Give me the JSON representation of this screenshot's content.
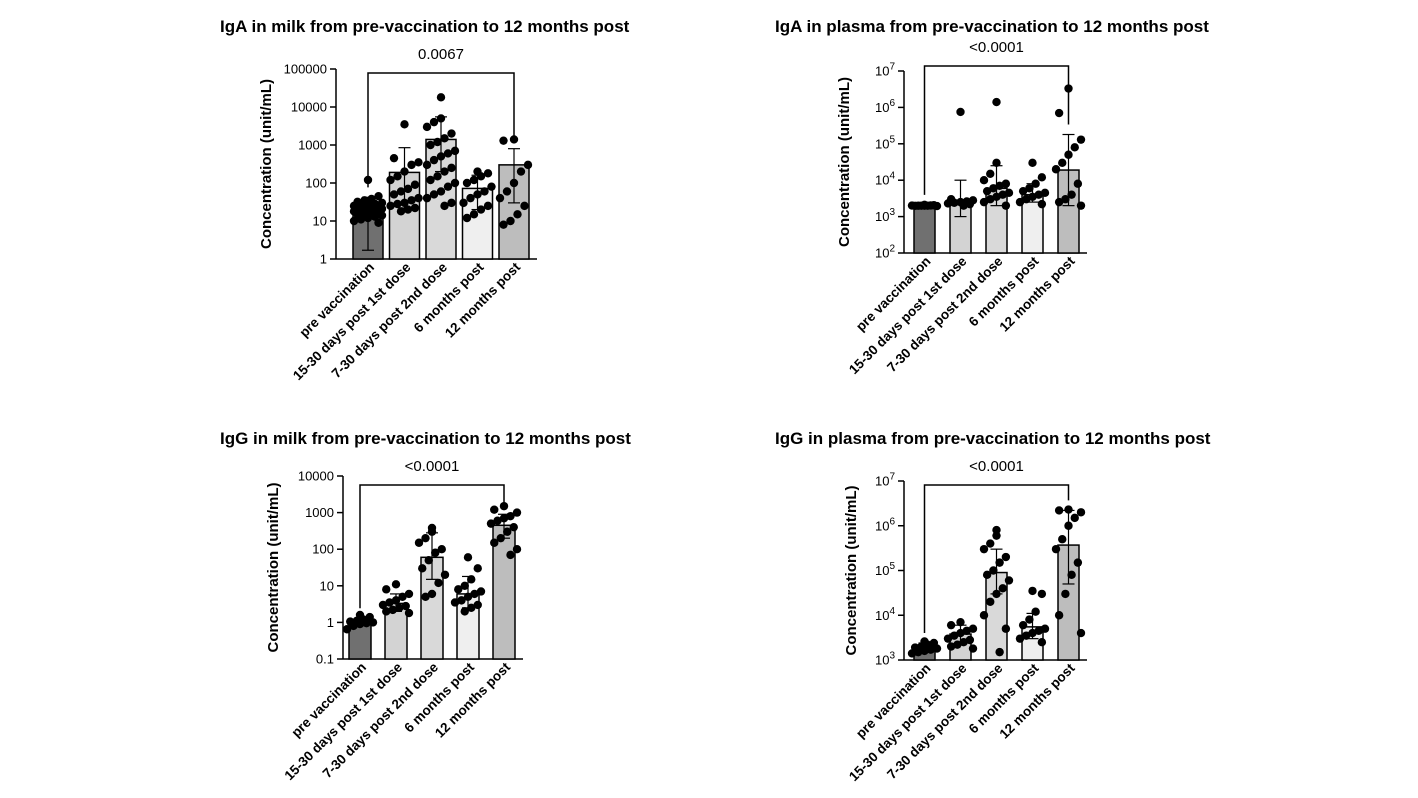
{
  "chart_data": [
    {
      "type": "bar",
      "title": "IgA in milk from pre-vaccination to 12 months post",
      "ylabel": "Concentration (unit/mL)",
      "yscale": "log",
      "ylim": [
        1,
        100000
      ],
      "yticks": [
        1,
        10,
        100,
        1000,
        10000,
        100000
      ],
      "ytick_labels": [
        "1",
        "10",
        "100",
        "1000",
        "10000",
        "100000"
      ],
      "categories": [
        "pre vaccination",
        "15-30 days post 1st dose",
        "7-30 days post 2nd dose",
        "6 months post",
        "12 months post"
      ],
      "bar_colors": [
        "#707070",
        "#d3d3d3",
        "#d9d9d9",
        "#efefef",
        "#bdbdbd"
      ],
      "values": [
        21,
        190,
        1400,
        72,
        300
      ],
      "err_low": [
        1.7,
        22,
        200,
        20,
        30
      ],
      "err_high": [
        42,
        850,
        5500,
        160,
        800
      ],
      "points": [
        [
          120,
          45,
          38,
          35,
          32,
          30,
          28,
          27,
          26,
          25,
          24,
          23,
          22,
          22,
          21,
          21,
          20,
          19,
          18,
          18,
          17,
          16,
          15,
          14,
          13,
          12,
          11,
          10,
          9
        ],
        [
          3500,
          450,
          350,
          300,
          200,
          150,
          120,
          90,
          70,
          60,
          50,
          40,
          35,
          30,
          28,
          25,
          22,
          20,
          18
        ],
        [
          18000,
          5000,
          4000,
          3000,
          2000,
          1500,
          1200,
          1000,
          700,
          600,
          500,
          400,
          300,
          250,
          200,
          150,
          120,
          100,
          80,
          60,
          50,
          40,
          30,
          25
        ],
        [
          200,
          180,
          150,
          120,
          100,
          80,
          60,
          50,
          40,
          30,
          25,
          20,
          15,
          12
        ],
        [
          1400,
          1300,
          300,
          200,
          100,
          60,
          40,
          25,
          15,
          10,
          8
        ]
      ],
      "comparison": {
        "from": 0,
        "to": 4,
        "label": "0.0067"
      }
    },
    {
      "type": "bar",
      "title": "IgA in plasma from pre-vaccination to 12 months post",
      "ylabel": "Concentration (unit/mL)",
      "yscale": "log",
      "ylim": [
        100,
        10000000
      ],
      "yticks": [
        100,
        1000,
        10000,
        100000,
        1000000,
        10000000
      ],
      "ytick_labels": [
        "10^2",
        "10^3",
        "10^4",
        "10^5",
        "10^6",
        "10^7"
      ],
      "categories": [
        "pre vaccination",
        "15-30 days post 1st dose",
        "7-30 days post 2nd dose",
        "6 months post",
        "12 months post"
      ],
      "bar_colors": [
        "#707070",
        "#d3d3d3",
        "#d9d9d9",
        "#efefef",
        "#bdbdbd"
      ],
      "values": [
        2000,
        2500,
        6000,
        4000,
        19000
      ],
      "err_low": [
        1900,
        1000,
        2000,
        2500,
        2000
      ],
      "err_high": [
        2100,
        10000,
        25000,
        8000,
        180000
      ],
      "points": [
        [
          2100,
          2050,
          2000,
          2000,
          1980,
          1950,
          2020,
          2000,
          1990,
          2010
        ],
        [
          750000,
          3000,
          2800,
          2600,
          2500,
          2400,
          2300,
          2200,
          2000
        ],
        [
          1400000,
          30000,
          15000,
          10000,
          8000,
          7000,
          6000,
          5000,
          4500,
          4000,
          3500,
          3000,
          2500,
          2000
        ],
        [
          30000,
          12000,
          8000,
          6000,
          5000,
          4500,
          4000,
          3500,
          3000,
          2500,
          2200
        ],
        [
          3300000,
          700000,
          130000,
          80000,
          50000,
          30000,
          20000,
          8000,
          4000,
          3000,
          2500,
          2000
        ]
      ],
      "comparison": {
        "from": 0,
        "to": 4,
        "label": "<0.0001"
      }
    },
    {
      "type": "bar",
      "title": "IgG in milk from pre-vaccination to 12 months post",
      "ylabel": "Concentration (unit/mL)",
      "yscale": "log",
      "ylim": [
        0.1,
        10000
      ],
      "yticks": [
        0.1,
        1,
        10,
        100,
        1000,
        10000
      ],
      "ytick_labels": [
        "0.1",
        "1",
        "10",
        "100",
        "1000",
        "10000"
      ],
      "categories": [
        "pre vaccination",
        "15-30 days post 1st dose",
        "7-30 days post 2nd dose",
        "6 months post",
        "12 months post"
      ],
      "bar_colors": [
        "#707070",
        "#d3d3d3",
        "#d9d9d9",
        "#efefef",
        "#bdbdbd"
      ],
      "values": [
        1.1,
        3.3,
        60,
        6,
        450
      ],
      "err_low": [
        0.9,
        2,
        15,
        2.5,
        200
      ],
      "err_high": [
        1.3,
        6,
        280,
        18,
        900
      ],
      "points": [
        [
          1.6,
          1.4,
          1.2,
          1.1,
          1.05,
          1.0,
          0.95,
          0.9,
          0.8,
          0.65
        ],
        [
          11,
          8,
          6,
          5,
          4,
          3.5,
          3,
          2.8,
          2.5,
          2.2,
          2,
          1.8
        ],
        [
          380,
          300,
          200,
          150,
          100,
          80,
          50,
          30,
          20,
          12,
          6,
          5
        ],
        [
          60,
          30,
          15,
          10,
          8,
          7,
          6,
          5,
          4,
          3.5,
          3,
          2.5,
          2
        ],
        [
          1500,
          1200,
          1000,
          800,
          700,
          600,
          500,
          400,
          300,
          200,
          150,
          100,
          70
        ]
      ],
      "comparison": {
        "from": 0,
        "to": 4,
        "label": "<0.0001"
      }
    },
    {
      "type": "bar",
      "title": "IgG in plasma from pre-vaccination to 12 months post",
      "ylabel": "Concentration (unit/mL)",
      "yscale": "log",
      "ylim": [
        1000,
        10000000
      ],
      "yticks": [
        1000,
        10000,
        100000,
        1000000,
        10000000
      ],
      "ytick_labels": [
        "10^3",
        "10^4",
        "10^5",
        "10^6",
        "10^7"
      ],
      "categories": [
        "pre vaccination",
        "15-30 days post 1st dose",
        "7-30 days post 2nd dose",
        "6 months post",
        "12 months post"
      ],
      "bar_colors": [
        "#707070",
        "#d3d3d3",
        "#d9d9d9",
        "#efefef",
        "#bdbdbd"
      ],
      "values": [
        1900,
        3800,
        90000,
        5500,
        370000
      ],
      "err_low": [
        1500,
        2500,
        30000,
        3000,
        50000
      ],
      "err_high": [
        2400,
        6000,
        300000,
        11000,
        2200000
      ],
      "points": [
        [
          2600,
          2400,
          2200,
          2000,
          1900,
          1800,
          1700,
          1600,
          1500,
          1400
        ],
        [
          7000,
          6000,
          5000,
          4500,
          4000,
          3500,
          3000,
          2800,
          2500,
          2200,
          2000,
          1800
        ],
        [
          800000,
          600000,
          400000,
          300000,
          200000,
          150000,
          100000,
          80000,
          60000,
          40000,
          30000,
          20000,
          10000,
          5000,
          1500
        ],
        [
          35000,
          30000,
          12000,
          8000,
          6000,
          5000,
          4500,
          4000,
          3500,
          3000,
          2500
        ],
        [
          2300000,
          2200000,
          2000000,
          1500000,
          1000000,
          500000,
          300000,
          150000,
          80000,
          30000,
          10000,
          4000
        ]
      ],
      "comparison": {
        "from": 0,
        "to": 4,
        "label": "<0.0001"
      }
    }
  ]
}
